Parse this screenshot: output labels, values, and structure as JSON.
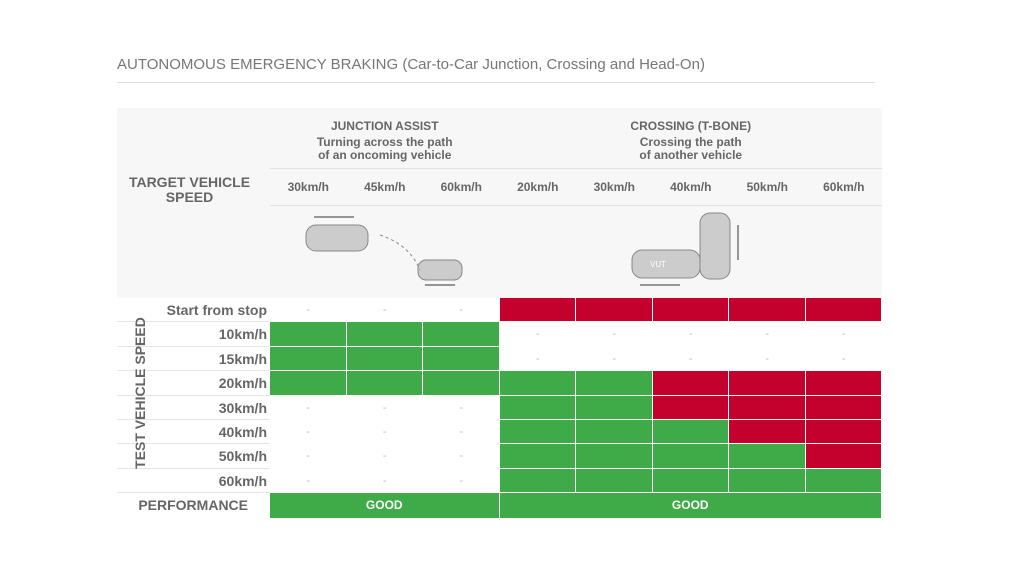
{
  "title": "AUTONOMOUS EMERGENCY BRAKING (Car-to-Car Junction, Crossing and Head-On)",
  "target_label": [
    "TARGET VEHICLE",
    "SPEED"
  ],
  "test_label": "TEST VEHICLE SPEED",
  "groups": [
    {
      "title": "JUNCTION ASSIST",
      "subtitle": [
        "Turning across the path",
        "of an oncoming vehicle"
      ],
      "columns": [
        "30km/h",
        "45km/h",
        "60km/h"
      ],
      "performance": "GOOD",
      "performance_color": "#3fab48"
    },
    {
      "title": "CROSSING (T-BONE)",
      "subtitle": [
        "Crossing the path",
        "of another vehicle"
      ],
      "columns": [
        "20km/h",
        "30km/h",
        "40km/h",
        "50km/h",
        "60km/h"
      ],
      "performance": "GOOD",
      "performance_color": "#3fab48"
    }
  ],
  "car_label": "VUT",
  "rows": [
    {
      "label": "Start from stop",
      "cells": [
        "-",
        "-",
        "-",
        "#c4002d",
        "#c4002d",
        "#c4002d",
        "#c4002d",
        "#c4002d"
      ]
    },
    {
      "label": "10km/h",
      "cells": [
        "#3fab48",
        "#3fab48",
        "#3fab48",
        "-",
        "-",
        "-",
        "-",
        "-"
      ]
    },
    {
      "label": "15km/h",
      "cells": [
        "#3fab48",
        "#3fab48",
        "#3fab48",
        "-",
        "-",
        "-",
        "-",
        "-"
      ]
    },
    {
      "label": "20km/h",
      "cells": [
        "#3fab48",
        "#3fab48",
        "#3fab48",
        "#3fab48",
        "#3fab48",
        "#c4002d",
        "#c4002d",
        "#c4002d"
      ]
    },
    {
      "label": "30km/h",
      "cells": [
        "-",
        "-",
        "-",
        "#3fab48",
        "#3fab48",
        "#c4002d",
        "#c4002d",
        "#c4002d"
      ]
    },
    {
      "label": "40km/h",
      "cells": [
        "-",
        "-",
        "-",
        "#3fab48",
        "#3fab48",
        "#3fab48",
        "#c4002d",
        "#c4002d"
      ]
    },
    {
      "label": "50km/h",
      "cells": [
        "-",
        "-",
        "-",
        "#3fab48",
        "#3fab48",
        "#3fab48",
        "#3fab48",
        "#c4002d"
      ]
    },
    {
      "label": "60km/h",
      "cells": [
        "-",
        "-",
        "-",
        "#3fab48",
        "#3fab48",
        "#3fab48",
        "#3fab48",
        "#3fab48"
      ]
    }
  ],
  "performance_label": "PERFORMANCE"
}
